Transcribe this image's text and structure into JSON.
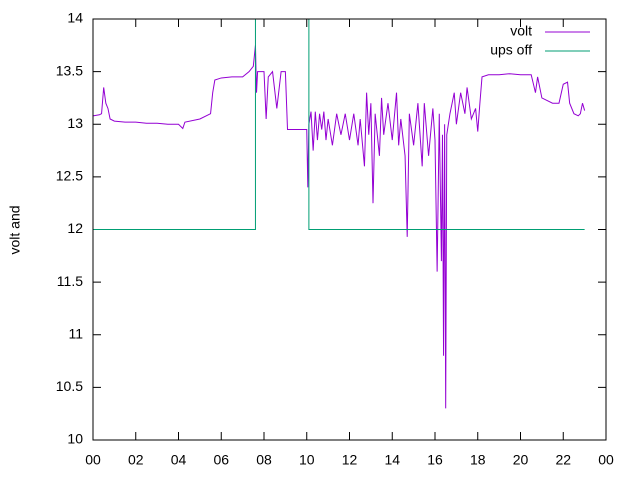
{
  "chart_data": {
    "type": "line",
    "ylabel": "volt and",
    "xlim": [
      0,
      24
    ],
    "ylim": [
      10,
      14
    ],
    "xticks": [
      {
        "value": 0,
        "label": "00"
      },
      {
        "value": 2,
        "label": "02"
      },
      {
        "value": 4,
        "label": "04"
      },
      {
        "value": 6,
        "label": "06"
      },
      {
        "value": 8,
        "label": "08"
      },
      10,
      12,
      14,
      16,
      18,
      20,
      22,
      {
        "value": 24,
        "label": "00"
      }
    ],
    "yticks": [
      10,
      10.5,
      11,
      11.5,
      12,
      12.5,
      13,
      13.5,
      14
    ],
    "grid": false,
    "legend": "top right",
    "series": [
      {
        "name": "volt",
        "color": "#9400d3",
        "x": [
          0,
          0.3,
          0.4,
          0.5,
          0.6,
          0.7,
          0.8,
          1,
          1.5,
          2,
          2.5,
          3,
          3.5,
          4,
          4.2,
          4.3,
          5,
          5.5,
          5.6,
          5.7,
          6,
          6.5,
          7,
          7.3,
          7.5,
          7.6,
          7.65,
          7.7,
          8,
          8.1,
          8.2,
          8.4,
          8.6,
          8.8,
          9,
          9.1,
          9.5,
          10,
          10.05,
          10.1,
          10.2,
          10.3,
          10.4,
          10.5,
          10.6,
          10.7,
          10.8,
          10.9,
          11,
          11.2,
          11.4,
          11.6,
          11.8,
          12,
          12.2,
          12.4,
          12.5,
          12.7,
          12.8,
          12.9,
          13,
          13.1,
          13.2,
          13.4,
          13.5,
          13.6,
          13.8,
          14,
          14.2,
          14.3,
          14.4,
          14.6,
          14.7,
          14.8,
          15,
          15.2,
          15.4,
          15.5,
          15.7,
          15.9,
          16,
          16.1,
          16.2,
          16.3,
          16.35,
          16.4,
          16.45,
          16.5,
          16.55,
          16.7,
          16.9,
          17,
          17.2,
          17.4,
          17.5,
          17.7,
          17.9,
          18,
          18.1,
          18.2,
          18.5,
          19,
          19.5,
          20,
          20.5,
          20.7,
          20.8,
          21,
          21.5,
          21.8,
          22,
          22.2,
          22.3,
          22.5,
          22.7,
          22.8,
          22.9,
          23
        ],
        "values": [
          13.08,
          13.09,
          13.1,
          13.35,
          13.2,
          13.15,
          13.05,
          13.03,
          13.02,
          13.02,
          13.01,
          13.01,
          13.0,
          13.0,
          12.96,
          13.02,
          13.05,
          13.1,
          13.3,
          13.42,
          13.44,
          13.45,
          13.45,
          13.5,
          13.55,
          13.75,
          13.3,
          13.5,
          13.5,
          13.05,
          13.45,
          13.5,
          13.15,
          13.5,
          13.5,
          12.95,
          12.95,
          12.95,
          12.4,
          13.0,
          13.12,
          12.75,
          13.12,
          12.85,
          13.1,
          12.95,
          13.12,
          12.85,
          13.05,
          12.8,
          13.1,
          12.9,
          13.1,
          12.85,
          13.1,
          12.8,
          13.05,
          12.6,
          13.3,
          12.9,
          13.2,
          12.25,
          13.1,
          12.7,
          13.25,
          12.9,
          13.2,
          12.85,
          13.3,
          12.8,
          13.05,
          12.7,
          11.93,
          13.1,
          12.8,
          13.2,
          12.6,
          13.2,
          12.7,
          13.15,
          12.85,
          11.6,
          13.1,
          11.7,
          12.9,
          10.8,
          13.0,
          10.3,
          12.9,
          13.1,
          13.3,
          13.0,
          13.3,
          13.1,
          13.35,
          13.05,
          13.15,
          12.93,
          13.2,
          13.45,
          13.47,
          13.47,
          13.48,
          13.47,
          13.47,
          13.3,
          13.45,
          13.25,
          13.2,
          13.2,
          13.38,
          13.4,
          13.2,
          13.1,
          13.08,
          13.1,
          13.2,
          13.13
        ]
      },
      {
        "name": "ups off",
        "color": "#009e73",
        "x": [
          0,
          7.6,
          7.6,
          10.1,
          10.1,
          23
        ],
        "values": [
          12,
          12,
          14,
          14,
          12,
          12
        ]
      }
    ]
  }
}
